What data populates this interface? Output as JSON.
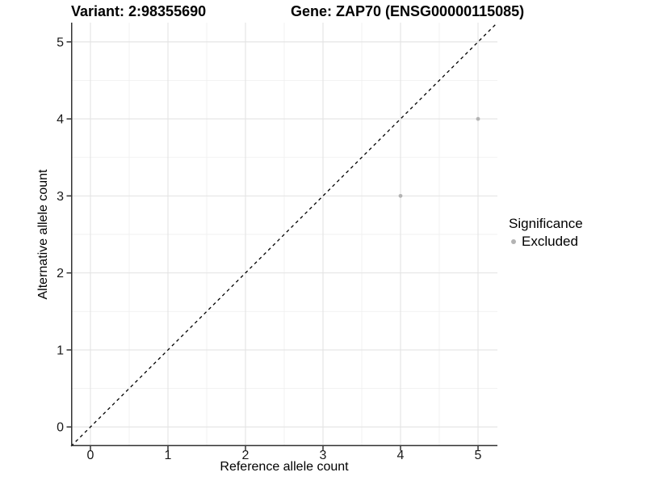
{
  "chart_data": {
    "type": "scatter",
    "title_left": "Variant: 2:98355690",
    "title_right": "Gene: ZAP70 (ENSG00000115085)",
    "xlabel": "Reference allele count",
    "ylabel": "Alternative allele count",
    "xlim": [
      -0.25,
      5.25
    ],
    "ylim": [
      -0.25,
      5.25
    ],
    "xticks": [
      0,
      1,
      2,
      3,
      4,
      5
    ],
    "yticks": [
      0,
      1,
      2,
      3,
      4,
      5
    ],
    "minor_ticks": [
      0.5,
      1.5,
      2.5,
      3.5,
      4.5
    ],
    "grid": "major+minor",
    "identity_line": {
      "slope": 1,
      "intercept": 0,
      "style": "dashed",
      "color": "#000000"
    },
    "series": [
      {
        "name": "Excluded",
        "color": "#b3b3b3",
        "points": [
          {
            "x": 4,
            "y": 3
          },
          {
            "x": 5,
            "y": 4
          }
        ]
      }
    ],
    "legend": {
      "title": "Significance",
      "position": "right",
      "items": [
        {
          "label": "Excluded",
          "color": "#b3b3b3"
        }
      ]
    },
    "colors": {
      "background": "#ffffff",
      "axis_line": "#333333",
      "tick_label": "#1a1a1a",
      "grid_major": "#e3e3e3",
      "grid_minor": "#f0f0f0",
      "point": "#b3b3b3"
    }
  }
}
